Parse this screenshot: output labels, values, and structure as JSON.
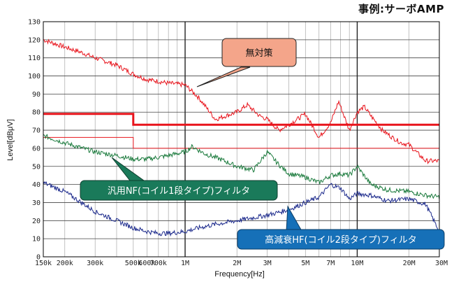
{
  "header": {
    "title": "事例:サーボAMP"
  },
  "chart_data": {
    "type": "line",
    "xlabel": "Frequency[Hz]",
    "ylabel": "Level[dBμV]",
    "x_scale": "log",
    "xlim": [
      150000,
      30000000
    ],
    "ylim": [
      0,
      130
    ],
    "grid": true,
    "x_ticks": [
      {
        "value": 150000,
        "label": "150k"
      },
      {
        "value": 200000,
        "label": "200k"
      },
      {
        "value": 300000,
        "label": "300k"
      },
      {
        "value": 500000,
        "label": "500k"
      },
      {
        "value": 600000,
        "label": "600k"
      },
      {
        "value": 700000,
        "label": "700k"
      },
      {
        "value": 1000000,
        "label": "1M"
      },
      {
        "value": 2000000,
        "label": "2M"
      },
      {
        "value": 3000000,
        "label": "3M"
      },
      {
        "value": 5000000,
        "label": "5M"
      },
      {
        "value": 7000000,
        "label": "7M"
      },
      {
        "value": 10000000,
        "label": "10M"
      },
      {
        "value": 20000000,
        "label": "20M"
      },
      {
        "value": 30000000,
        "label": "30M"
      }
    ],
    "y_ticks": [
      "0",
      "10",
      "20",
      "30",
      "40",
      "50",
      "60",
      "70",
      "80",
      "90",
      "100",
      "110",
      "120",
      "130"
    ],
    "limit_lines": [
      {
        "color": "#e8141c",
        "width": 3,
        "points": [
          [
            150000,
            79
          ],
          [
            500000,
            79
          ],
          [
            500000,
            73
          ],
          [
            30000000,
            73
          ]
        ]
      },
      {
        "color": "#e8141c",
        "width": 1,
        "points": [
          [
            150000,
            66
          ],
          [
            500000,
            66
          ],
          [
            500000,
            60
          ],
          [
            30000000,
            60
          ]
        ]
      }
    ],
    "series": [
      {
        "color": "#e8141c",
        "x": [
          150000,
          200000,
          250000,
          300000,
          400000,
          500000,
          600000,
          700000,
          800000,
          1000000,
          1200000,
          1500000,
          2000000,
          2300000,
          2700000,
          3000000,
          3500000,
          4000000,
          5000000,
          6000000,
          7000000,
          7800000,
          9000000,
          10000000,
          11000000,
          12000000,
          14000000,
          16000000,
          18000000,
          20000000,
          22000000,
          25000000,
          30000000
        ],
        "y": [
          120,
          116,
          113,
          110,
          106,
          101,
          98,
          97,
          96,
          95,
          88,
          76,
          80,
          84,
          78,
          76,
          70,
          73,
          79,
          66,
          74,
          86,
          70,
          80,
          83,
          78,
          70,
          66,
          63,
          62,
          58,
          53,
          53
        ]
      },
      {
        "color": "#1a7a3c",
        "x": [
          150000,
          200000,
          300000,
          400000,
          500000,
          600000,
          700000,
          800000,
          1000000,
          1100000,
          1300000,
          1600000,
          2000000,
          2500000,
          3000000,
          3500000,
          4000000,
          5000000,
          6000000,
          7000000,
          8000000,
          9000000,
          10000000,
          12000000,
          15000000,
          20000000,
          25000000,
          30000000
        ],
        "y": [
          67,
          63,
          58,
          56,
          54,
          54,
          55,
          56,
          58,
          61,
          57,
          54,
          50,
          48,
          58,
          51,
          46,
          44,
          41,
          45,
          46,
          45,
          50,
          40,
          37,
          36,
          34,
          33
        ]
      },
      {
        "color": "#1c2a8c",
        "x": [
          150000,
          200000,
          250000,
          300000,
          400000,
          500000,
          600000,
          700000,
          800000,
          1000000,
          1200000,
          1500000,
          2000000,
          3000000,
          4000000,
          5000000,
          6000000,
          7000000,
          8000000,
          9000000,
          10000000,
          12000000,
          15000000,
          20000000,
          25000000,
          30000000
        ],
        "y": [
          41,
          36,
          30,
          25,
          20,
          16,
          14,
          13,
          13,
          14,
          16,
          18,
          20,
          23,
          26,
          30,
          33,
          40,
          38,
          32,
          35,
          34,
          31,
          32,
          29,
          14
        ]
      }
    ],
    "annotations": [
      {
        "text": "無対策",
        "color": "#ffffff",
        "fill": "#f4a58a",
        "text_color": "#111111"
      },
      {
        "text": "汎用NF(コイル1段タイプ)フィルタ",
        "fill": "#1a7a5a",
        "text_color": "#ffffff"
      },
      {
        "text": "高減衰HF(コイル2段タイプ)フィルタ",
        "fill": "#1670b8",
        "text_color": "#ffffff"
      }
    ]
  }
}
